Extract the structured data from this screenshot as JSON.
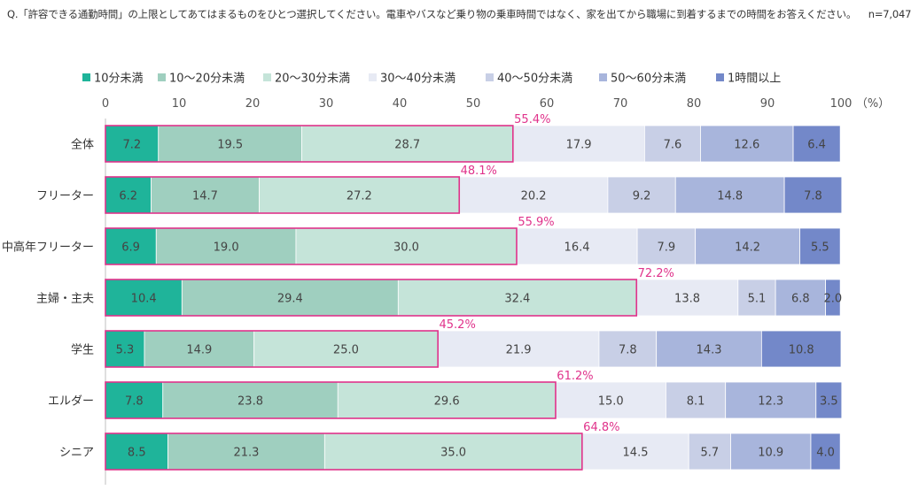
{
  "question": "Q.「許容できる通勤時間」の上限としてあてはまるものをひとつ選択してください。電車やバスなど乗り物の乗車時間ではなく、家を出てから職場に到着するまでの時間をお答えください。",
  "sample_size": "n=7,047",
  "colors": [
    "#1fb49a",
    "#9fcfbf",
    "#c5e4d9",
    "#e7eaf4",
    "#c8cfe6",
    "#a8b5dc",
    "#7388c9"
  ],
  "highlight_color": "#e0338b",
  "chart_data": {
    "type": "bar",
    "orientation": "horizontal",
    "stacked": true,
    "xlim": [
      0,
      100
    ],
    "xticks": [
      0,
      10,
      20,
      30,
      40,
      50,
      60,
      70,
      80,
      90,
      100
    ],
    "unit_label": "（%）",
    "legend_position": "top",
    "categories": [
      "全体",
      "フリーター",
      "中高年フリーター",
      "主婦・主夫",
      "学生",
      "エルダー",
      "シニア"
    ],
    "series": [
      {
        "name": "10分未満",
        "values": [
          7.2,
          6.2,
          6.9,
          10.4,
          5.3,
          7.8,
          8.5
        ]
      },
      {
        "name": "10～20分未満",
        "values": [
          19.5,
          14.7,
          19.0,
          29.4,
          14.9,
          23.8,
          21.3
        ]
      },
      {
        "name": "20～30分未満",
        "values": [
          28.7,
          27.2,
          30.0,
          32.4,
          25.0,
          29.6,
          35.0
        ]
      },
      {
        "name": "30～40分未満",
        "values": [
          17.9,
          20.2,
          16.4,
          13.8,
          21.9,
          15.0,
          14.5
        ]
      },
      {
        "name": "40～50分未満",
        "values": [
          7.6,
          9.2,
          7.9,
          5.1,
          7.8,
          8.1,
          5.7
        ]
      },
      {
        "name": "50～60分未満",
        "values": [
          12.6,
          14.8,
          14.2,
          6.8,
          14.3,
          12.3,
          10.9
        ]
      },
      {
        "name": "1時間以上",
        "values": [
          6.4,
          7.8,
          5.5,
          2.0,
          10.8,
          3.5,
          4.0
        ]
      }
    ],
    "cumulative_labels": [
      "55.4%",
      "48.1%",
      "55.9%",
      "72.2%",
      "45.2%",
      "61.2%",
      "64.8%"
    ],
    "cumulative_values": [
      55.4,
      48.1,
      55.9,
      72.2,
      45.2,
      61.2,
      64.8
    ]
  }
}
